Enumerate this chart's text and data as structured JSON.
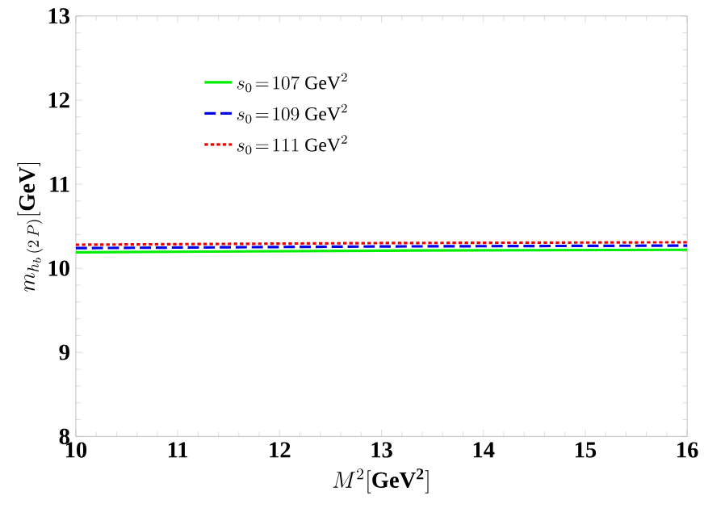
{
  "chart_data": {
    "type": "line",
    "xlabel": "M^2[\\mathbf{GeV^2}]",
    "ylabel": "m_{h_b\\,(2\\,P)}[\\mathbf{GeV}]",
    "x": [
      10,
      13,
      16
    ],
    "series": [
      {
        "name": "s_0\\!=\\!107\\ \\mathrm{GeV}^2",
        "color": "#00ee00",
        "line_style": "solid",
        "values": [
          10.19,
          10.21,
          10.22
        ]
      },
      {
        "name": "s_0\\!=\\!109\\ \\mathrm{GeV}^2",
        "color": "#0000ee",
        "line_style": "dashed",
        "values": [
          10.24,
          10.26,
          10.27
        ]
      },
      {
        "name": "s_0\\!=\\!111\\ \\mathrm{GeV}^2",
        "color": "#ee0000",
        "line_style": "dotted",
        "values": [
          10.28,
          10.3,
          10.31
        ]
      }
    ],
    "xlim": [
      10,
      16
    ],
    "ylim": [
      8,
      13
    ],
    "xticks": [
      10,
      11,
      12,
      13,
      14,
      15,
      16
    ],
    "yticks": [
      8,
      9,
      10,
      11,
      12,
      13
    ],
    "legend": "top left",
    "marker": "none",
    "grid": false
  }
}
